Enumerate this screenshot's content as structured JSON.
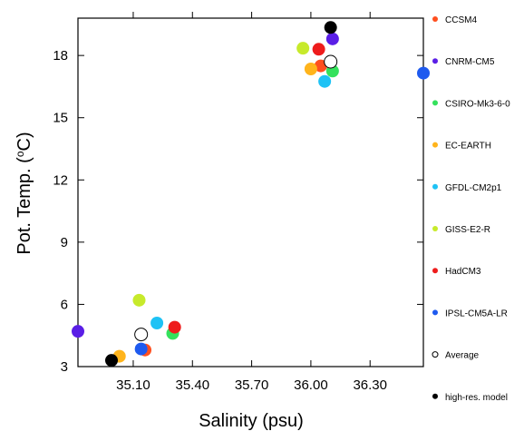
{
  "chart_data": {
    "type": "scatter",
    "title": "",
    "xlabel": "Salinity (psu)",
    "ylabel_main": "Pot. Temp. (",
    "ylabel_deg": "o",
    "ylabel_unit": "C)",
    "xlim": [
      34.82,
      36.57
    ],
    "ylim": [
      3,
      19.8
    ],
    "xticks": [
      35.1,
      35.4,
      35.7,
      36.0,
      36.3
    ],
    "xtick_labels": [
      "35.10",
      "35.40",
      "35.70",
      "36.00",
      "36.30"
    ],
    "yticks": [
      3,
      6,
      9,
      12,
      15,
      18
    ],
    "ytick_labels": [
      "3",
      "6",
      "9",
      "12",
      "15",
      "18"
    ],
    "grid": false,
    "legend_position": "right",
    "series": [
      {
        "name": "CCSM4",
        "color": "#ff4f1f",
        "filled": true,
        "points": [
          [
            35.16,
            3.8
          ],
          [
            36.05,
            17.5
          ]
        ]
      },
      {
        "name": "CNRM-CM5",
        "color": "#5a1ee6",
        "filled": true,
        "points": [
          [
            34.82,
            4.7
          ],
          [
            36.11,
            18.8
          ]
        ]
      },
      {
        "name": "CSIRO-Mk3-6-0",
        "color": "#34e15c",
        "filled": true,
        "points": [
          [
            35.3,
            4.6
          ],
          [
            36.11,
            17.25
          ]
        ]
      },
      {
        "name": "EC-EARTH",
        "color": "#ffb41c",
        "filled": true,
        "points": [
          [
            35.03,
            3.5
          ],
          [
            36.0,
            17.35
          ]
        ]
      },
      {
        "name": "GFDL-CM2p1",
        "color": "#1ec2f5",
        "filled": true,
        "points": [
          [
            35.22,
            5.1
          ],
          [
            36.07,
            16.75
          ]
        ]
      },
      {
        "name": "GISS-E2-R",
        "color": "#c7ea2b",
        "filled": true,
        "points": [
          [
            35.13,
            6.2
          ],
          [
            35.96,
            18.35
          ]
        ]
      },
      {
        "name": "HadCM3",
        "color": "#ee1c1c",
        "filled": true,
        "points": [
          [
            35.31,
            4.9
          ],
          [
            36.04,
            18.3
          ]
        ]
      },
      {
        "name": "IPSL-CM5A-LR",
        "color": "#1e5aef",
        "filled": true,
        "points": [
          [
            35.14,
            3.85
          ],
          [
            36.57,
            17.15
          ]
        ]
      },
      {
        "name": "Average",
        "color": "#000000",
        "filled": false,
        "points": [
          [
            35.14,
            4.55
          ],
          [
            36.1,
            17.7
          ]
        ]
      },
      {
        "name": "high-res. model",
        "color": "#000000",
        "filled": true,
        "points": [
          [
            34.99,
            3.3
          ],
          [
            36.1,
            19.35
          ]
        ]
      }
    ]
  }
}
